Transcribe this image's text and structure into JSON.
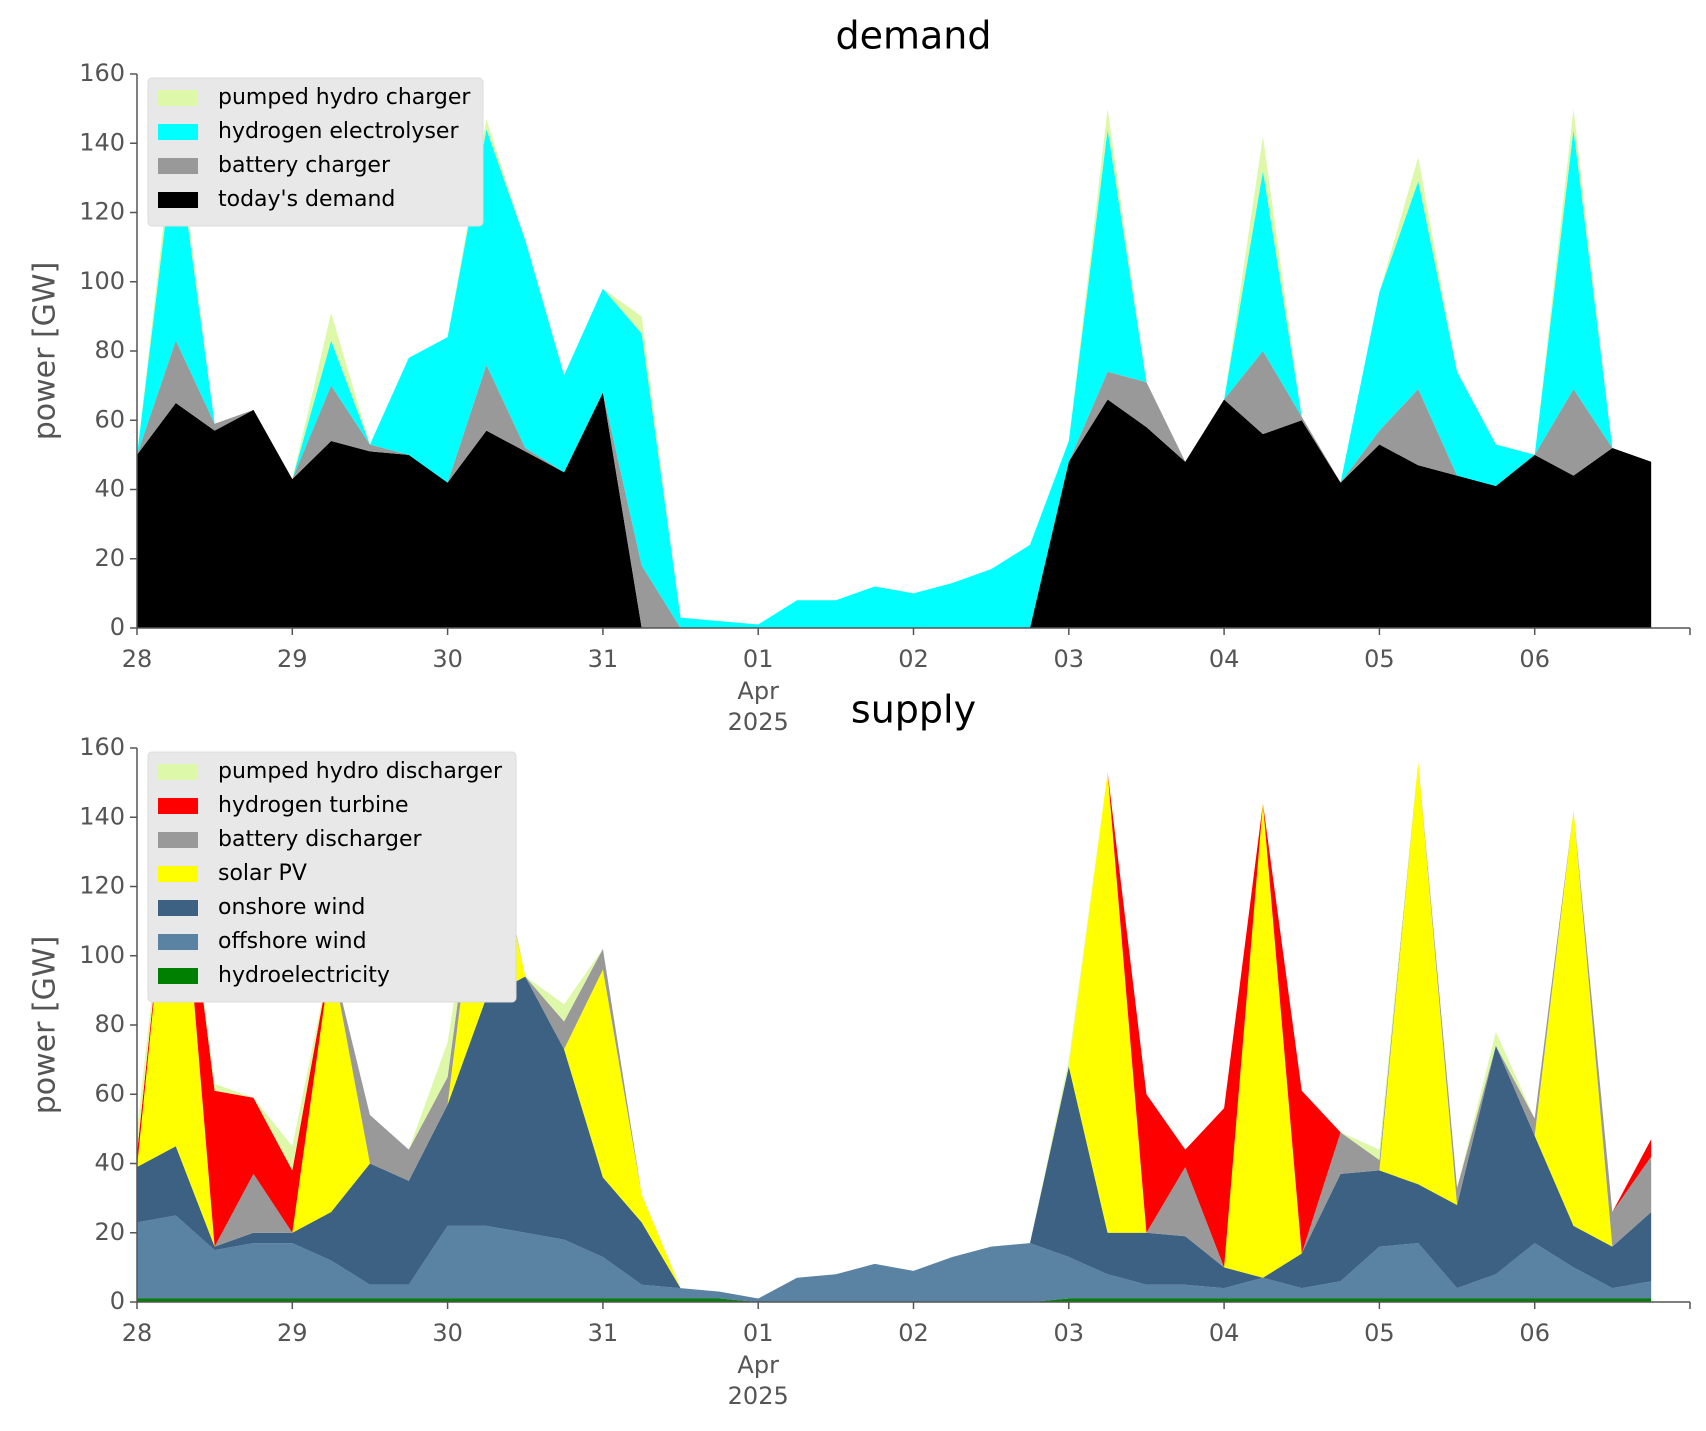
{
  "chart_data": [
    {
      "type": "area",
      "stacked": true,
      "title": "demand",
      "ylabel": "power [GW]",
      "ylim": [
        0,
        160
      ],
      "yticks": [
        0,
        20,
        40,
        60,
        80,
        100,
        120,
        140,
        160
      ],
      "xlim": [
        "2025-03-28T00:00",
        "2025-04-07T00:00"
      ],
      "xticks": [
        {
          "date": "2025-03-28",
          "label": "28"
        },
        {
          "date": "2025-03-29",
          "label": "29"
        },
        {
          "date": "2025-03-30",
          "label": "30"
        },
        {
          "date": "2025-03-31",
          "label": "31"
        },
        {
          "date": "2025-04-01",
          "label": "01",
          "sublabel": [
            "Apr",
            "2025"
          ]
        },
        {
          "date": "2025-04-02",
          "label": "02"
        },
        {
          "date": "2025-04-03",
          "label": "03"
        },
        {
          "date": "2025-04-04",
          "label": "04"
        },
        {
          "date": "2025-04-05",
          "label": "05"
        },
        {
          "date": "2025-04-06",
          "label": "06"
        }
      ],
      "grid": false,
      "legend_position": "upper-left",
      "x_start": "2025-03-28",
      "x_step_hours": 6,
      "series": [
        {
          "name": "today's demand",
          "color": "#000000",
          "values": [
            50,
            65,
            57,
            63,
            43,
            54,
            51,
            50,
            42,
            57,
            51,
            45,
            68,
            0,
            0,
            0,
            0,
            0,
            0,
            0,
            0,
            0,
            0,
            0,
            48,
            66,
            58,
            48,
            66,
            56,
            60,
            42,
            53,
            47,
            44,
            41,
            50,
            44,
            52,
            48
          ]
        },
        {
          "name": "battery charger",
          "color": "#999999",
          "values": [
            0,
            18,
            2,
            0,
            0,
            16,
            2,
            0,
            0,
            19,
            1,
            0,
            0,
            18,
            0,
            0,
            0,
            0,
            0,
            0,
            0,
            0,
            0,
            0,
            0,
            8,
            13,
            0,
            0,
            24,
            1,
            0,
            4,
            22,
            0,
            0,
            0,
            25,
            0,
            0
          ]
        },
        {
          "name": "hydrogen electrolyser",
          "color": "#00ffff",
          "values": [
            0,
            59,
            0,
            0,
            0,
            13,
            0,
            28,
            42,
            68,
            60,
            28,
            30,
            67,
            3,
            2,
            1,
            8,
            8,
            12,
            10,
            13,
            17,
            24,
            6,
            70,
            0,
            0,
            0,
            52,
            0,
            0,
            40,
            60,
            30,
            12,
            0,
            75,
            0,
            0
          ]
        },
        {
          "name": "pumped hydro charger",
          "color": "#ddf8a8",
          "values": [
            0,
            6,
            0,
            0,
            0,
            8,
            0,
            0,
            0,
            3,
            0,
            0,
            0,
            5,
            0,
            0,
            0,
            0,
            0,
            0,
            0,
            0,
            0,
            0,
            0,
            6,
            0,
            0,
            0,
            10,
            0,
            0,
            0,
            7,
            0,
            0,
            0,
            6,
            0,
            0
          ]
        }
      ],
      "legend_order": [
        "pumped hydro charger",
        "hydrogen electrolyser",
        "battery charger",
        "today's demand"
      ]
    },
    {
      "type": "area",
      "stacked": true,
      "title": "supply",
      "ylabel": "power [GW]",
      "ylim": [
        0,
        160
      ],
      "yticks": [
        0,
        20,
        40,
        60,
        80,
        100,
        120,
        140,
        160
      ],
      "xlim": [
        "2025-03-28T00:00",
        "2025-04-07T00:00"
      ],
      "xticks": [
        {
          "date": "2025-03-28",
          "label": "28"
        },
        {
          "date": "2025-03-29",
          "label": "29"
        },
        {
          "date": "2025-03-30",
          "label": "30"
        },
        {
          "date": "2025-03-31",
          "label": "31"
        },
        {
          "date": "2025-04-01",
          "label": "01",
          "sublabel": [
            "Apr",
            "2025"
          ]
        },
        {
          "date": "2025-04-02",
          "label": "02"
        },
        {
          "date": "2025-04-03",
          "label": "03"
        },
        {
          "date": "2025-04-04",
          "label": "04"
        },
        {
          "date": "2025-04-05",
          "label": "05"
        },
        {
          "date": "2025-04-06",
          "label": "06"
        }
      ],
      "grid": false,
      "legend_position": "upper-left",
      "x_start": "2025-03-28",
      "x_step_hours": 6,
      "series": [
        {
          "name": "hydroelectricity",
          "color": "#008000",
          "values": [
            1,
            1,
            1,
            1,
            1,
            1,
            1,
            1,
            1,
            1,
            1,
            1,
            1,
            1,
            1,
            1,
            0,
            0,
            0,
            0,
            0,
            0,
            0,
            0,
            1,
            1,
            1,
            1,
            1,
            1,
            1,
            1,
            1,
            1,
            1,
            1,
            1,
            1,
            1,
            1
          ]
        },
        {
          "name": "offshore wind",
          "color": "#5a82a3",
          "values": [
            22,
            24,
            14,
            16,
            16,
            11,
            4,
            4,
            21,
            21,
            19,
            17,
            12,
            4,
            3,
            2,
            1,
            7,
            8,
            11,
            9,
            13,
            16,
            17,
            12,
            7,
            4,
            4,
            3,
            6,
            3,
            5,
            15,
            16,
            3,
            7,
            16,
            9,
            3,
            5
          ]
        },
        {
          "name": "onshore wind",
          "color": "#3c6182",
          "values": [
            16,
            20,
            1,
            3,
            3,
            14,
            35,
            30,
            35,
            66,
            74,
            55,
            23,
            18,
            0,
            0,
            0,
            0,
            0,
            0,
            0,
            0,
            0,
            0,
            55,
            12,
            15,
            14,
            6,
            0,
            10,
            31,
            22,
            17,
            24,
            66,
            31,
            12,
            12,
            20
          ]
        },
        {
          "name": "solar PV",
          "color": "#ffff00",
          "values": [
            0,
            105,
            0,
            0,
            0,
            74,
            0,
            0,
            0,
            58,
            0,
            0,
            60,
            8,
            0,
            0,
            0,
            0,
            0,
            0,
            0,
            0,
            0,
            0,
            0,
            133,
            0,
            0,
            0,
            137,
            0,
            0,
            0,
            122,
            0,
            0,
            0,
            120,
            0,
            0
          ]
        },
        {
          "name": "battery discharger",
          "color": "#999999",
          "values": [
            0,
            0,
            0,
            17,
            0,
            0,
            14,
            9,
            8,
            2,
            0,
            8,
            6,
            0,
            0,
            0,
            0,
            0,
            0,
            0,
            0,
            0,
            0,
            0,
            0,
            0,
            0,
            20,
            0,
            0,
            0,
            12,
            3,
            0,
            5,
            0,
            5,
            0,
            10,
            16
          ]
        },
        {
          "name": "hydrogen turbine",
          "color": "#ff0000",
          "values": [
            4,
            0,
            45,
            22,
            18,
            0,
            0,
            0,
            0,
            0,
            0,
            0,
            0,
            0,
            0,
            0,
            0,
            0,
            0,
            0,
            0,
            0,
            0,
            0,
            0,
            0,
            40,
            5,
            46,
            0,
            47,
            0,
            0,
            0,
            0,
            0,
            0,
            0,
            0,
            5
          ]
        },
        {
          "name": "pumped hydro discharger",
          "color": "#ddf8a8",
          "values": [
            7,
            0,
            2,
            0,
            7,
            0,
            0,
            0,
            10,
            0,
            0,
            5,
            0,
            0,
            0,
            0,
            0,
            0,
            0,
            0,
            0,
            0,
            0,
            0,
            2,
            0,
            0,
            0,
            0,
            0,
            0,
            0,
            3,
            0,
            0,
            4,
            0,
            0,
            0,
            0
          ]
        }
      ],
      "legend_order": [
        "pumped hydro discharger",
        "hydrogen turbine",
        "battery discharger",
        "solar PV",
        "onshore wind",
        "offshore wind",
        "hydroelectricity"
      ]
    }
  ]
}
